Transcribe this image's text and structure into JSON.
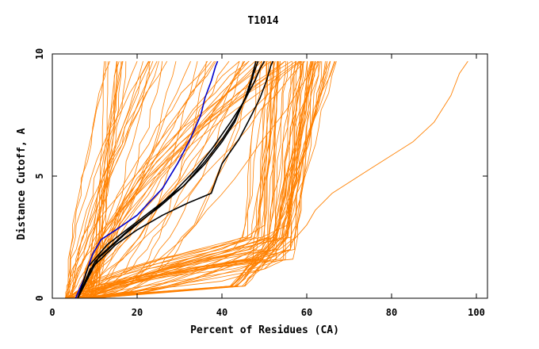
{
  "chart_data": {
    "type": "line",
    "title": "T1014",
    "xlabel": "Percent of Residues (CA)",
    "ylabel": "Distance Cutoff, A",
    "xlim": [
      0,
      100
    ],
    "ylim": [
      0,
      10
    ],
    "x_ticks": [
      "0",
      "20",
      "40",
      "60",
      "80",
      "100"
    ],
    "y_ticks": [
      "0",
      "5",
      "10"
    ],
    "colors": {
      "background_series": "#ff8000",
      "highlight_blue": "#0000cc",
      "highlight_black": "#000000",
      "axes": "#000000"
    },
    "series": [
      {
        "name": "blue model",
        "color": "#0000cc",
        "x": [
          5.5,
          7.5,
          9.5,
          11.5,
          15,
          20,
          26,
          29.5,
          32.5,
          35,
          36,
          37.5,
          38.5,
          39
        ],
        "y": [
          0,
          0.8,
          1.8,
          2.4,
          2.8,
          3.4,
          4.5,
          5.5,
          6.5,
          7.5,
          8.2,
          8.9,
          9.5,
          9.7
        ]
      },
      {
        "name": "black model 1",
        "color": "#000000",
        "x": [
          6,
          9,
          15,
          20,
          26,
          32,
          37.5,
          40,
          44,
          47,
          49,
          50.5,
          51.5,
          52
        ],
        "y": [
          0,
          1.2,
          2.2,
          2.8,
          3.4,
          3.9,
          4.3,
          5.5,
          6.5,
          7.5,
          8.2,
          8.9,
          9.5,
          9.7
        ]
      },
      {
        "name": "black model 2",
        "color": "#000000",
        "x": [
          6,
          10,
          17,
          24,
          29,
          34,
          38,
          42,
          45,
          47.5,
          49,
          50
        ],
        "y": [
          0,
          1.5,
          2.6,
          3.6,
          4.4,
          5.3,
          6.2,
          7.2,
          8,
          8.8,
          9.4,
          9.7
        ]
      },
      {
        "name": "black model 3",
        "color": "#000000",
        "x": [
          6,
          11,
          18,
          25,
          31,
          36,
          40,
          43,
          45,
          46.5,
          47.5,
          48.5
        ],
        "y": [
          0,
          1.7,
          2.8,
          3.7,
          4.6,
          5.5,
          6.4,
          7.2,
          8,
          8.6,
          9.2,
          9.7
        ]
      },
      {
        "name": "black model 4",
        "color": "#000000",
        "x": [
          6,
          8.5,
          13,
          19,
          25,
          31,
          36,
          40,
          43,
          45.5,
          47,
          48
        ],
        "y": [
          0,
          1.3,
          2.2,
          3,
          3.8,
          4.6,
          5.6,
          6.5,
          7.3,
          8.2,
          9,
          9.7
        ]
      },
      {
        "name": "outlier model",
        "color": "#ff8000",
        "x": [
          6,
          20,
          40,
          50,
          55,
          60,
          62,
          66,
          75,
          85,
          90,
          94,
          96,
          98
        ],
        "y": [
          0,
          0.3,
          0.7,
          1.2,
          2,
          3,
          3.6,
          4.3,
          5.3,
          6.4,
          7.2,
          8.3,
          9.2,
          9.7
        ]
      }
    ],
    "band_series": {
      "name": "orange model ensemble (background)",
      "color": "#ff8000",
      "count": 110,
      "description": "many orange curves spanning from about 3-10% at 0 A to about 10-68% at 9.7 A, with a dense cluster rising steeply near 50-57%"
    }
  }
}
